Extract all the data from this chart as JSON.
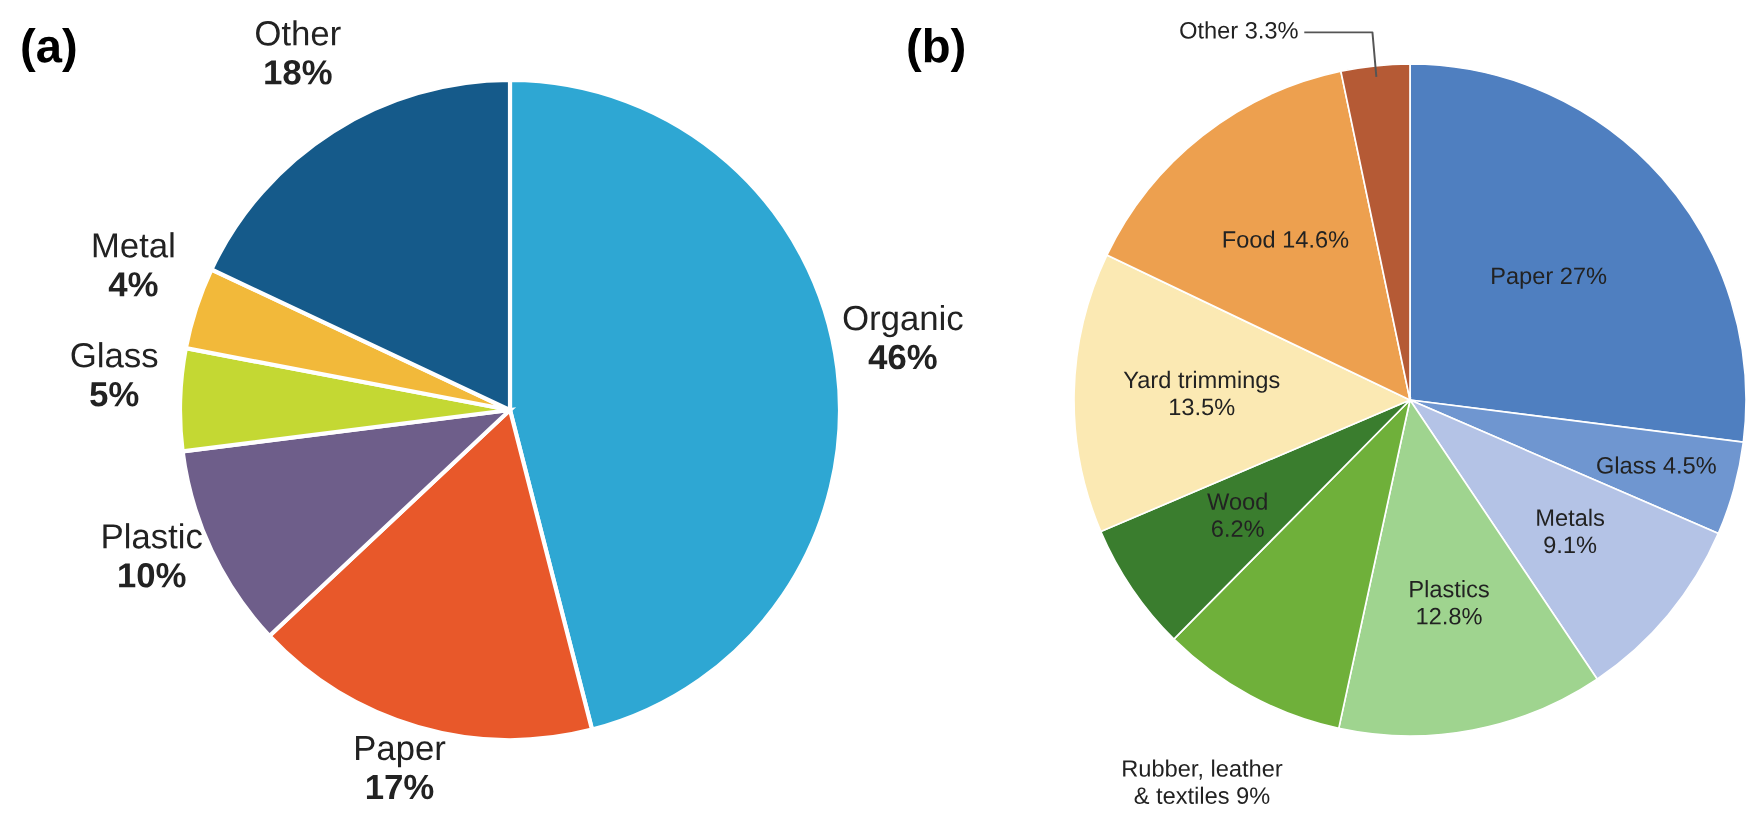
{
  "chart_data": [
    {
      "type": "pie",
      "title": "(a)",
      "categories": [
        "Organic",
        "Paper",
        "Plastic",
        "Glass",
        "Metal",
        "Other"
      ],
      "values": [
        46,
        17,
        10,
        5,
        4,
        18
      ],
      "value_labels": [
        "46%",
        "17%",
        "10%",
        "5%",
        "4%",
        "18%"
      ],
      "colors": [
        "#2ea7d3",
        "#e8582a",
        "#6e5e8a",
        "#c4d833",
        "#f2b93a",
        "#155a8a"
      ]
    },
    {
      "type": "pie",
      "title": "(b)",
      "categories": [
        "Paper",
        "Glass",
        "Metals",
        "Plastics",
        "Rubber, leather & textiles",
        "Wood",
        "Yard trimmings",
        "Food",
        "Other"
      ],
      "values": [
        27,
        4.5,
        9.1,
        12.8,
        9,
        6.2,
        13.5,
        14.6,
        3.3
      ],
      "value_labels": [
        "27%",
        "4.5%",
        "9.1%",
        "12.8%",
        "9%",
        "6.2%",
        "13.5%",
        "14.6%",
        "3.3%"
      ],
      "colors": [
        "#4f7fc0",
        "#6f96d0",
        "#b4c3e6",
        "#9fd48f",
        "#6fb03a",
        "#3a7d2e",
        "#fbe9b3",
        "#eda04f",
        "#b55a35"
      ]
    }
  ]
}
